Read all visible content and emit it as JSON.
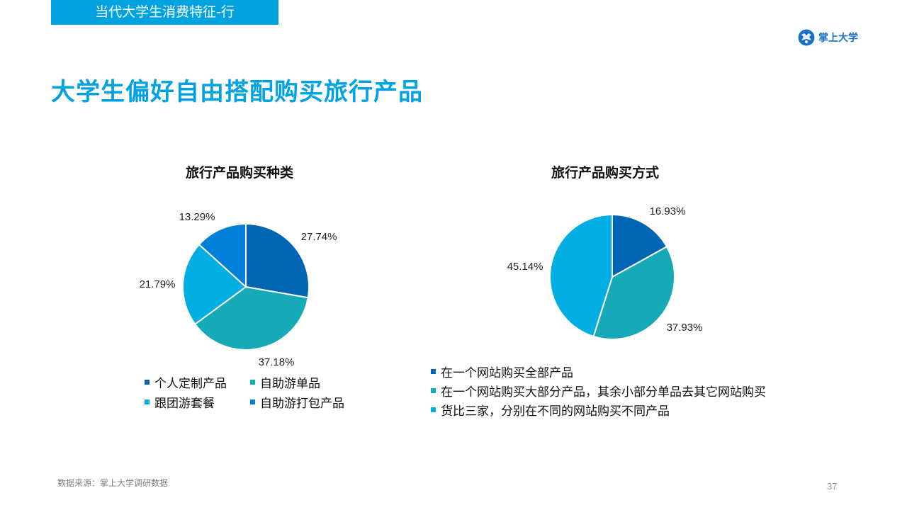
{
  "header": {
    "section_tag": "当代大学生消费特征-行",
    "logo_text": "掌上大学",
    "title": "大学生偏好自由搭配购买旅行产品"
  },
  "chart_data": [
    {
      "type": "pie",
      "title": "旅行产品购买种类",
      "categories": [
        "个人定制产品",
        "自助游单品",
        "跟团游套餐",
        "自助游打包产品"
      ],
      "values": [
        27.74,
        37.18,
        21.79,
        13.29
      ],
      "labels": [
        "27.74%",
        "37.18%",
        "21.79%",
        "13.29%"
      ],
      "colors": [
        "#0066b3",
        "#16aab8",
        "#00aee3",
        "#0080d8"
      ],
      "legend_placement": "bottom"
    },
    {
      "type": "pie",
      "title": "旅行产品购买方式",
      "categories": [
        "在一个网站购买全部产品",
        "在一个网站购买大部分产品，其余小部分单品去其它网站购买",
        "货比三家，分别在不同的网站购买不同产品"
      ],
      "values": [
        16.93,
        37.93,
        45.14
      ],
      "labels": [
        "16.93%",
        "37.93%",
        "45.14%"
      ],
      "colors": [
        "#0066b3",
        "#16aab8",
        "#00aee3"
      ],
      "legend_placement": "bottom"
    }
  ],
  "footer": {
    "source": "数据来源：掌上大学调研数据",
    "page_number": "37"
  }
}
